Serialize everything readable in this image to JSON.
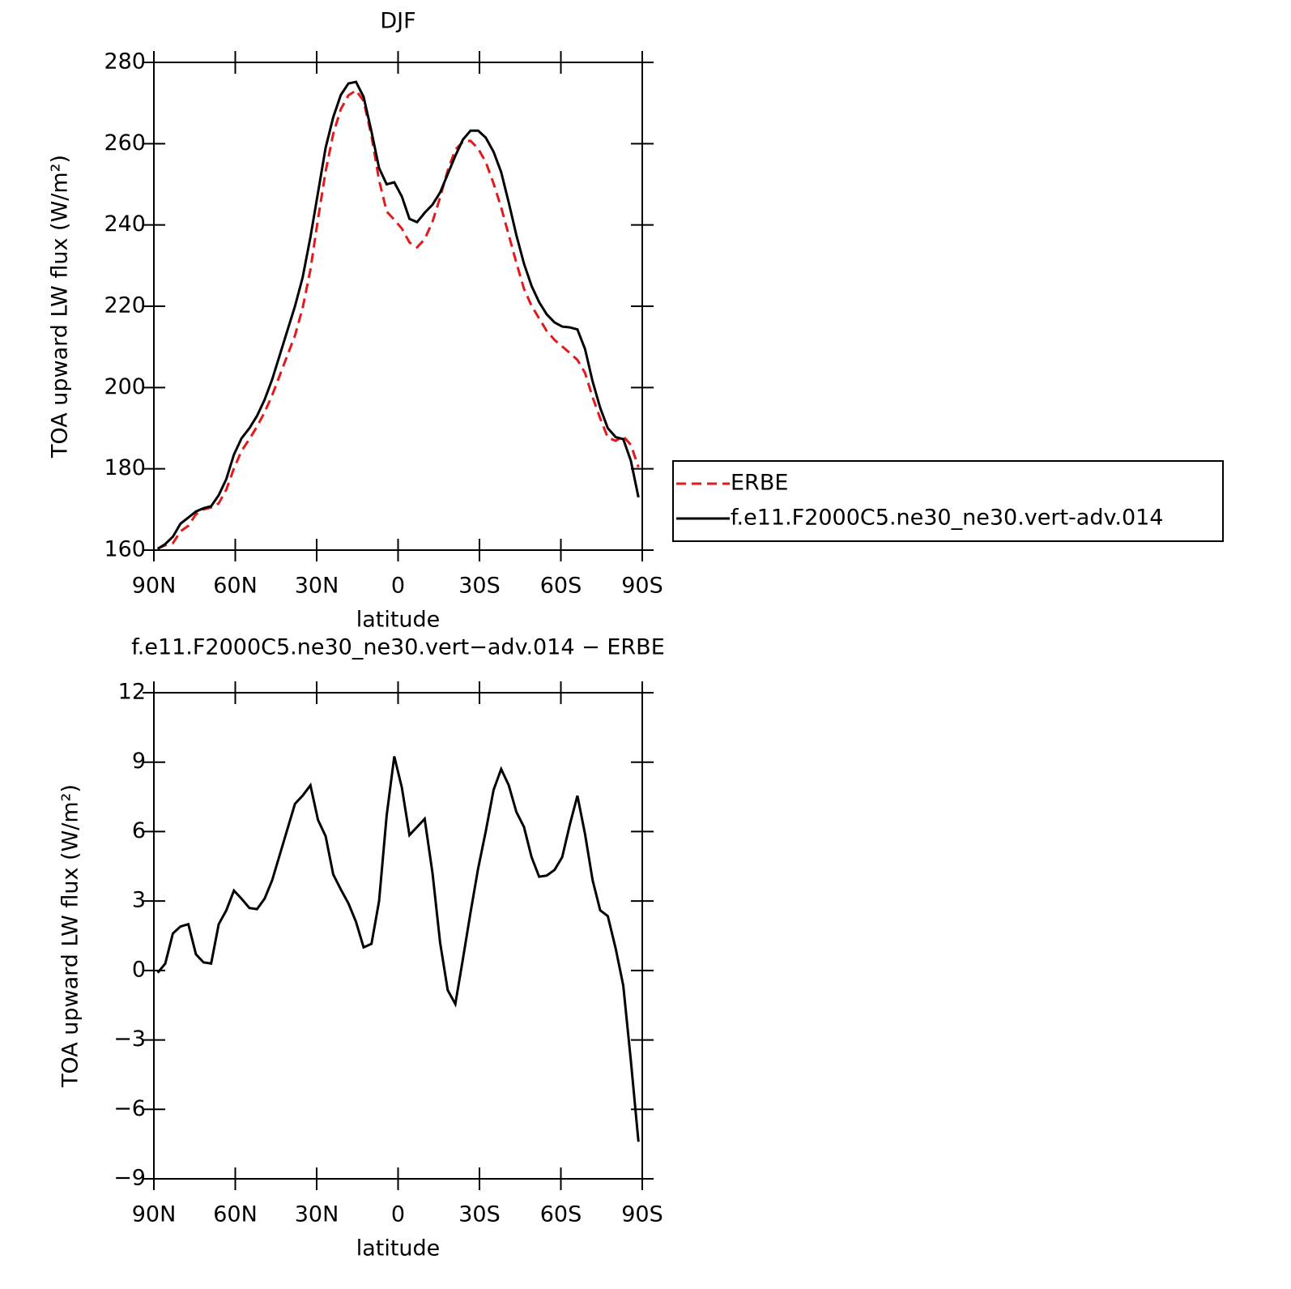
{
  "chart_data": [
    {
      "type": "line",
      "title": "DJF",
      "xlabel": "latitude",
      "ylabel": "TOA upward LW flux (W/m²)",
      "x": [
        88.6,
        85.8,
        83.0,
        80.2,
        77.3,
        74.5,
        71.7,
        68.9,
        66.1,
        63.3,
        60.5,
        57.7,
        54.8,
        52.0,
        49.2,
        46.4,
        43.6,
        40.8,
        38.0,
        35.2,
        32.3,
        29.5,
        26.7,
        23.9,
        21.1,
        18.3,
        15.5,
        12.7,
        9.8,
        7.0,
        4.2,
        1.4,
        -1.4,
        -4.2,
        -7.0,
        -9.8,
        -12.7,
        -15.5,
        -18.3,
        -21.1,
        -23.9,
        -26.7,
        -29.5,
        -32.3,
        -35.2,
        -38.0,
        -40.8,
        -43.6,
        -46.4,
        -49.2,
        -52.0,
        -54.8,
        -57.7,
        -60.5,
        -63.3,
        -66.1,
        -68.9,
        -71.7,
        -74.5,
        -77.3,
        -80.2,
        -83.0,
        -85.8,
        -88.6
      ],
      "series": [
        {
          "name": "ERBE",
          "color": "#e31a1c",
          "style": "dashed",
          "values": [
            160.4,
            161.2,
            161.7,
            164.6,
            166.0,
            168.8,
            170.0,
            170.5,
            171.5,
            174.9,
            180.1,
            184.4,
            187.3,
            190.4,
            193.9,
            198.1,
            203.0,
            207.9,
            212.8,
            219.5,
            229.0,
            241.5,
            253.2,
            262.4,
            268.5,
            271.9,
            273.1,
            270.5,
            261.9,
            251.0,
            243.3,
            241.3,
            239.1,
            235.7,
            234.5,
            236.5,
            240.8,
            246.8,
            253.4,
            258.5,
            260.5,
            260.7,
            258.8,
            255.5,
            250.2,
            244.3,
            237.5,
            230.7,
            224.3,
            220.1,
            217.0,
            213.9,
            211.7,
            210.1,
            208.5,
            206.8,
            203.6,
            197.6,
            192.4,
            187.7,
            186.9,
            188.0,
            185.9,
            180.4
          ]
        },
        {
          "name": "f.e11.F2000C5.ne30_ne30.vert-adv.014",
          "color": "#000000",
          "style": "solid",
          "values": [
            160.3,
            161.5,
            163.3,
            166.5,
            168.0,
            169.5,
            170.3,
            170.8,
            173.5,
            177.5,
            183.5,
            187.5,
            190.0,
            193.0,
            197.0,
            202.0,
            208.0,
            214.0,
            220.0,
            227.0,
            237.0,
            248.0,
            259.0,
            266.5,
            272.0,
            274.8,
            275.2,
            271.5,
            263.0,
            254.0,
            250.0,
            250.5,
            247.0,
            241.5,
            240.7,
            243.0,
            245.0,
            248.0,
            252.5,
            257.0,
            261.0,
            263.2,
            263.2,
            261.5,
            258.0,
            253.0,
            245.5,
            237.5,
            230.5,
            225.0,
            221.0,
            218.0,
            216.0,
            215.0,
            214.8,
            214.3,
            209.5,
            201.5,
            195.0,
            190.0,
            187.8,
            187.3,
            182.0,
            173.0
          ]
        }
      ],
      "xlim": [
        90,
        -90
      ],
      "xticks": [
        {
          "value": 90,
          "label": "90N"
        },
        {
          "value": 60,
          "label": "60N"
        },
        {
          "value": 30,
          "label": "30N"
        },
        0,
        {
          "value": -30,
          "label": "30S"
        },
        {
          "value": -60,
          "label": "60S"
        },
        {
          "value": -90,
          "label": "90S"
        }
      ],
      "ylim": [
        160,
        280
      ],
      "yticks": [
        160,
        180,
        200,
        220,
        240,
        260,
        280
      ],
      "legend": "outside-right"
    },
    {
      "type": "line",
      "title": "f.e11.F2000C5.ne30_ne30.vert−adv.014 − ERBE",
      "xlabel": "latitude",
      "ylabel": "TOA upward LW flux (W/m²)",
      "x": [
        88.6,
        85.8,
        83.0,
        80.2,
        77.3,
        74.5,
        71.7,
        68.9,
        66.1,
        63.3,
        60.5,
        57.7,
        54.8,
        52.0,
        49.2,
        46.4,
        43.6,
        40.8,
        38.0,
        35.2,
        32.3,
        29.5,
        26.7,
        23.9,
        21.1,
        18.3,
        15.5,
        12.7,
        9.8,
        7.0,
        4.2,
        1.4,
        -1.4,
        -4.2,
        -7.0,
        -9.8,
        -12.7,
        -15.5,
        -18.3,
        -21.1,
        -23.9,
        -26.7,
        -29.5,
        -32.3,
        -35.2,
        -38.0,
        -40.8,
        -43.6,
        -46.4,
        -49.2,
        -52.0,
        -54.8,
        -57.7,
        -60.5,
        -63.3,
        -66.1,
        -68.9,
        -71.7,
        -74.5,
        -77.3,
        -80.2,
        -83.0,
        -85.8,
        -88.6
      ],
      "series": [
        {
          "color": "#000000",
          "style": "solid",
          "values": [
            -0.1,
            0.3,
            1.6,
            1.9,
            2.0,
            0.7,
            0.35,
            0.3,
            2.0,
            2.6,
            3.45,
            3.1,
            2.7,
            2.65,
            3.1,
            3.9,
            5.0,
            6.1,
            7.2,
            7.55,
            8.0,
            6.5,
            5.8,
            4.15,
            3.5,
            2.9,
            2.1,
            1.0,
            1.15,
            3.0,
            6.7,
            9.25,
            7.9,
            5.85,
            6.2,
            6.55,
            4.2,
            1.2,
            -0.85,
            -1.45,
            0.5,
            2.5,
            4.4,
            6.0,
            7.8,
            8.7,
            8.0,
            6.85,
            6.2,
            4.9,
            4.05,
            4.1,
            4.35,
            4.9,
            6.3,
            7.55,
            5.9,
            3.9,
            2.6,
            2.35,
            0.95,
            -0.65,
            -3.9,
            -7.4
          ]
        }
      ],
      "xlim": [
        90,
        -90
      ],
      "xticks": [
        {
          "value": 90,
          "label": "90N"
        },
        {
          "value": 60,
          "label": "60N"
        },
        {
          "value": 30,
          "label": "30N"
        },
        0,
        {
          "value": -30,
          "label": "30S"
        },
        {
          "value": -60,
          "label": "60S"
        },
        {
          "value": -90,
          "label": "90S"
        }
      ],
      "ylim": [
        -9,
        12
      ],
      "yticks": [
        {
          "value": -9,
          "label": "−9"
        },
        {
          "value": -6,
          "label": "−6"
        },
        {
          "value": -3,
          "label": "−3"
        },
        0,
        3,
        6,
        9,
        12
      ]
    }
  ]
}
